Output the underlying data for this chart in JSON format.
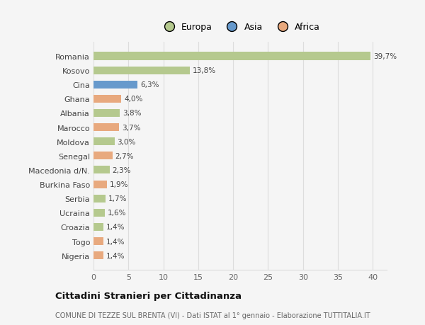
{
  "countries": [
    "Romania",
    "Kosovo",
    "Cina",
    "Ghana",
    "Albania",
    "Marocco",
    "Moldova",
    "Senegal",
    "Macedonia d/N.",
    "Burkina Faso",
    "Serbia",
    "Ucraina",
    "Croazia",
    "Togo",
    "Nigeria"
  ],
  "values": [
    39.7,
    13.8,
    6.3,
    4.0,
    3.8,
    3.7,
    3.0,
    2.7,
    2.3,
    1.9,
    1.7,
    1.6,
    1.4,
    1.4,
    1.4
  ],
  "continents": [
    "Europa",
    "Europa",
    "Asia",
    "Africa",
    "Europa",
    "Africa",
    "Europa",
    "Africa",
    "Europa",
    "Africa",
    "Europa",
    "Europa",
    "Europa",
    "Africa",
    "Africa"
  ],
  "labels": [
    "39,7%",
    "13,8%",
    "6,3%",
    "4,0%",
    "3,8%",
    "3,7%",
    "3,0%",
    "2,7%",
    "2,3%",
    "1,9%",
    "1,7%",
    "1,6%",
    "1,4%",
    "1,4%",
    "1,4%"
  ],
  "colors": {
    "Europa": "#b5c98e",
    "Asia": "#6699cc",
    "Africa": "#e8a97e"
  },
  "title": "Cittadini Stranieri per Cittadinanza",
  "subtitle": "COMUNE DI TEZZE SUL BRENTA (VI) - Dati ISTAT al 1° gennaio - Elaborazione TUTTITALIA.IT",
  "xlim": [
    0,
    42
  ],
  "xticks": [
    0,
    5,
    10,
    15,
    20,
    25,
    30,
    35,
    40
  ],
  "bg_color": "#f5f5f5",
  "grid_color": "#dddddd",
  "bar_height": 0.55
}
